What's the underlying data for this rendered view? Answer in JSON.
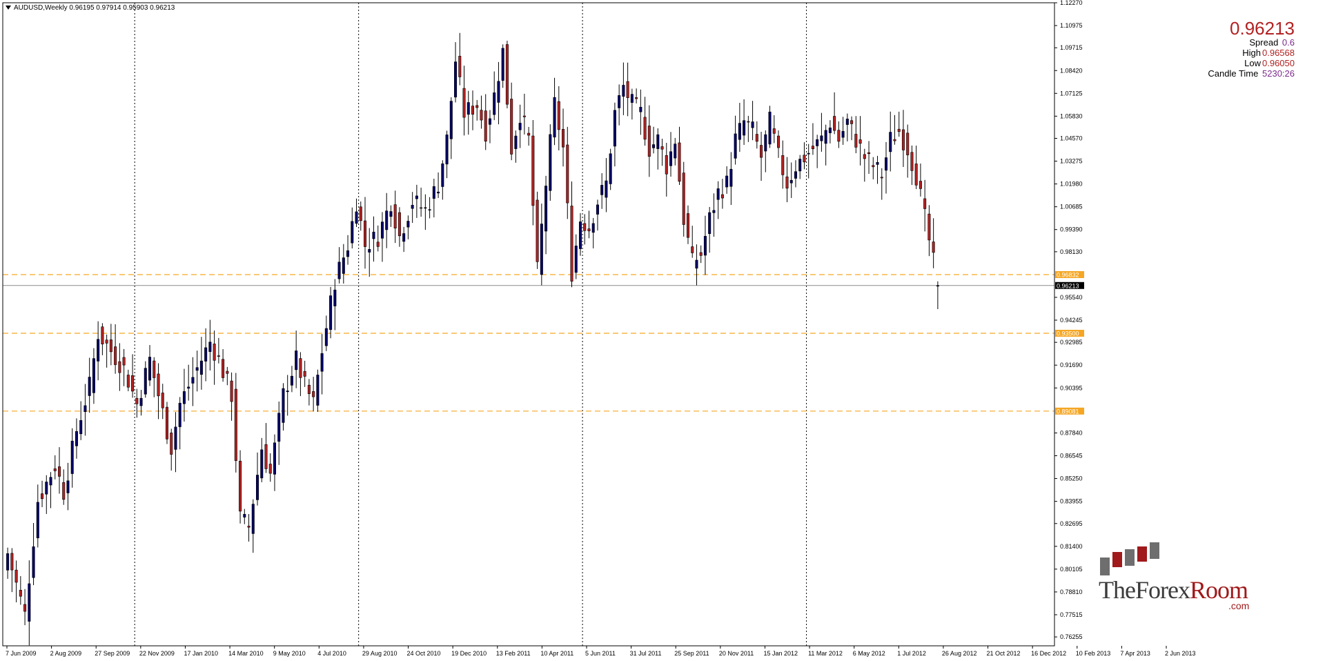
{
  "header": {
    "symbol_title": "AUDUSD,Weekly  0.96195 0.97914 0.95903 0.96213"
  },
  "info_panel": {
    "price": "0.96213",
    "spread_label": "Spread",
    "spread_value": "0.6",
    "high_label": "High",
    "high_value": "0.96568",
    "low_label": "Low",
    "low_value": "0.96050",
    "candle_time_label": "Candle Time",
    "candle_time_value": "5230:26"
  },
  "logo": {
    "text_main": "TheForex",
    "text_accent": "Room",
    "text_domain": ".com"
  },
  "colors": {
    "bull": "#000066",
    "bear": "#b22222",
    "wick": "#000000",
    "level_line": "#f5a623",
    "bid_line": "#8c8c8c",
    "grid_vline": "#000000"
  },
  "chart_data": {
    "type": "candlestick",
    "symbol": "AUDUSD",
    "timeframe": "Weekly",
    "ylim": [
      0.7575,
      1.1227
    ],
    "y_ticks": [
      "1.12270",
      "1.10975",
      "1.09715",
      "1.08420",
      "1.07125",
      "1.05830",
      "1.04570",
      "1.03275",
      "1.01980",
      "1.00685",
      "0.99390",
      "0.98130",
      "0.96832",
      "0.96213",
      "0.95540",
      "0.94245",
      "0.92985",
      "0.91690",
      "0.90395",
      "0.89081",
      "0.87840",
      "0.86545",
      "0.85250",
      "0.83955",
      "0.82695",
      "0.81400",
      "0.80105",
      "0.78810",
      "0.77515",
      "0.76255"
    ],
    "x_tick_labels": [
      "7 Jun 2009",
      "2 Aug 2009",
      "27 Sep 2009",
      "22 Nov 2009",
      "17 Jan 2010",
      "14 Mar 2010",
      "9 May 2010",
      "4 Jul 2010",
      "29 Aug 2010",
      "24 Oct 2010",
      "19 Dec 2010",
      "13 Feb 2011",
      "10 Apr 2011",
      "5 Jun 2011",
      "31 Jul 2011",
      "25 Sep 2011",
      "20 Nov 2011",
      "15 Jan 2012",
      "11 Mar 2012",
      "6 May 2012",
      "1 Jul 2012",
      "26 Aug 2012",
      "21 Oct 2012",
      "16 Dec 2012",
      "10 Feb 2013",
      "7 Apr 2013",
      "2 Jun 2013"
    ],
    "period_separators": [
      "Jan 2010",
      "Jan 2011",
      "Jan 2012",
      "Jan 2013"
    ],
    "levels": [
      {
        "label": "0.96832",
        "value": 0.96832,
        "style": "dashed"
      },
      {
        "label": "0.93500",
        "value": 0.935,
        "style": "dashed"
      },
      {
        "label": "0.89081",
        "value": 0.89081,
        "style": "dashed"
      }
    ],
    "bid": {
      "label": "0.96213",
      "value": 0.96213
    },
    "anchors": [
      [
        0,
        0.81
      ],
      [
        4,
        0.775
      ],
      [
        7,
        0.84
      ],
      [
        11,
        0.86
      ],
      [
        13,
        0.845
      ],
      [
        16,
        0.88
      ],
      [
        19,
        0.905
      ],
      [
        21,
        0.935
      ],
      [
        24,
        0.925
      ],
      [
        27,
        0.915
      ],
      [
        30,
        0.895
      ],
      [
        33,
        0.92
      ],
      [
        36,
        0.89
      ],
      [
        38,
        0.87
      ],
      [
        40,
        0.895
      ],
      [
        44,
        0.915
      ],
      [
        47,
        0.93
      ],
      [
        49,
        0.92
      ],
      [
        52,
        0.9
      ],
      [
        54,
        0.83
      ],
      [
        56,
        0.825
      ],
      [
        59,
        0.87
      ],
      [
        61,
        0.855
      ],
      [
        64,
        0.9
      ],
      [
        67,
        0.92
      ],
      [
        69,
        0.905
      ],
      [
        71,
        0.895
      ],
      [
        73,
        0.925
      ],
      [
        76,
        0.965
      ],
      [
        79,
        0.985
      ],
      [
        81,
        1.01
      ],
      [
        83,
        0.985
      ],
      [
        86,
        0.99
      ],
      [
        89,
        1.01
      ],
      [
        91,
        0.99
      ],
      [
        94,
        1.01
      ],
      [
        97,
        1.005
      ],
      [
        100,
        1.02
      ],
      [
        102,
        1.045
      ],
      [
        104,
        1.09
      ],
      [
        106,
        1.06
      ],
      [
        109,
        1.065
      ],
      [
        111,
        1.05
      ],
      [
        113,
        1.07
      ],
      [
        115,
        1.095
      ],
      [
        117,
        1.04
      ],
      [
        119,
        1.06
      ],
      [
        121,
        1.045
      ],
      [
        123,
        0.97
      ],
      [
        125,
        1.02
      ],
      [
        127,
        1.065
      ],
      [
        129,
        1.04
      ],
      [
        131,
        0.97
      ],
      [
        133,
        1.0
      ],
      [
        135,
        0.995
      ],
      [
        137,
        1.01
      ],
      [
        139,
        1.02
      ],
      [
        141,
        1.06
      ],
      [
        143,
        1.075
      ],
      [
        145,
        1.065
      ],
      [
        147,
        1.06
      ],
      [
        149,
        1.04
      ],
      [
        151,
        1.045
      ],
      [
        153,
        1.03
      ],
      [
        155,
        1.045
      ],
      [
        157,
        1.0
      ],
      [
        159,
        0.975
      ],
      [
        161,
        0.98
      ],
      [
        163,
        1.0
      ],
      [
        165,
        1.015
      ],
      [
        167,
        1.02
      ],
      [
        169,
        1.045
      ],
      [
        171,
        1.055
      ],
      [
        173,
        1.05
      ],
      [
        175,
        1.035
      ],
      [
        177,
        1.055
      ],
      [
        179,
        1.035
      ],
      [
        181,
        1.02
      ],
      [
        183,
        1.03
      ],
      [
        185,
        1.035
      ],
      [
        187,
        1.04
      ],
      [
        189,
        1.045
      ],
      [
        191,
        1.055
      ],
      [
        193,
        1.045
      ],
      [
        195,
        1.055
      ],
      [
        197,
        1.045
      ],
      [
        199,
        1.035
      ],
      [
        201,
        1.03
      ],
      [
        203,
        1.025
      ],
      [
        205,
        1.045
      ],
      [
        207,
        1.05
      ],
      [
        209,
        1.04
      ],
      [
        211,
        1.025
      ],
      [
        213,
        1.0
      ],
      [
        215,
        0.975
      ],
      [
        216,
        0.962
      ]
    ]
  }
}
